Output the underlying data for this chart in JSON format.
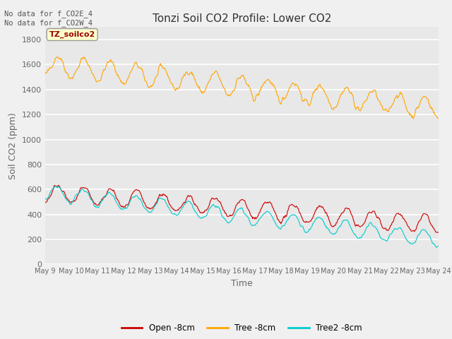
{
  "title": "Tonzi Soil CO2 Profile: Lower CO2",
  "xlabel": "Time",
  "ylabel": "Soil CO2 (ppm)",
  "bg_color": "#e8e8e8",
  "fig_bg": "#f0f0f0",
  "ylim": [
    0,
    1900
  ],
  "yticks": [
    0,
    200,
    400,
    600,
    800,
    1000,
    1200,
    1400,
    1600,
    1800
  ],
  "xticklabels": [
    "May 9",
    "May 10",
    "May 11",
    "May 12",
    "May 13",
    "May 14",
    "May 15",
    "May 16",
    "May 17",
    "May 18",
    "May 19",
    "May 20",
    "May 21",
    "May 22",
    "May 23",
    "May 24"
  ],
  "annotation_text": "No data for f_CO2E_4\nNo data for f_CO2W_4",
  "legend_label": "TZ_soilco2",
  "legend_entries": [
    "Open -8cm",
    "Tree -8cm",
    "Tree2 -8cm"
  ],
  "open_color": "#cc0000",
  "tree_color": "#ffa500",
  "tree2_color": "#00cccc",
  "title_fontsize": 11,
  "tick_color": "#666666",
  "label_color": "#666666"
}
